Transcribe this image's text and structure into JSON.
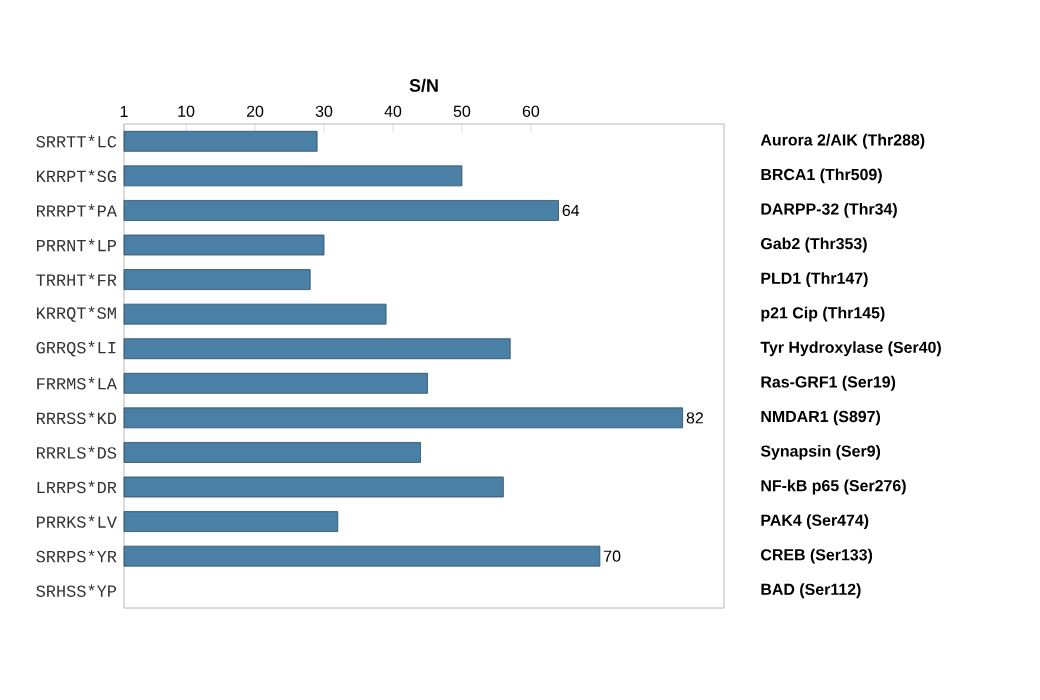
{
  "chart_data": {
    "type": "bar",
    "orientation": "horizontal",
    "xlabel": "S/N",
    "categories": [
      "SRRTT*LC",
      "KRRPT*SG",
      "RRRPT*PA",
      "PRRNT*LP",
      "TRRHT*FR",
      "KRRQT*SM",
      "GRRQS*LI",
      "FRRMS*LA",
      "RRRSS*KD",
      "RRRLS*DS",
      "LRRPS*DR",
      "PRRKS*LV",
      "SRRPS*YR",
      "SRHSS*YP"
    ],
    "values": [
      29,
      50,
      64,
      30,
      28,
      39,
      57,
      45,
      82,
      44,
      56,
      32,
      70,
      null
    ],
    "value_labels": [
      null,
      null,
      "64",
      null,
      null,
      null,
      null,
      null,
      "82",
      null,
      null,
      null,
      "70",
      null
    ],
    "color": "#4a7fa6",
    "xlim": [
      1,
      88
    ],
    "xticks": [
      1,
      10,
      20,
      30,
      40,
      50,
      60
    ],
    "annotations": [
      "Aurora 2/AIK (Thr288)",
      "BRCA1 (Thr509)",
      "DARPP-32 (Thr34)",
      "Gab2 (Thr353)",
      "PLD1 (Thr147)",
      "p21 Cip (Thr145)",
      "Tyr Hydroxylase (Ser40)",
      "Ras-GRF1 (Ser19)",
      "NMDAR1 (S897)",
      "Synapsin (Ser9)",
      "NF-kB p65 (Ser276)",
      "PAK4 (Ser474)",
      "CREB (Ser133)",
      "BAD (Ser112)"
    ]
  }
}
